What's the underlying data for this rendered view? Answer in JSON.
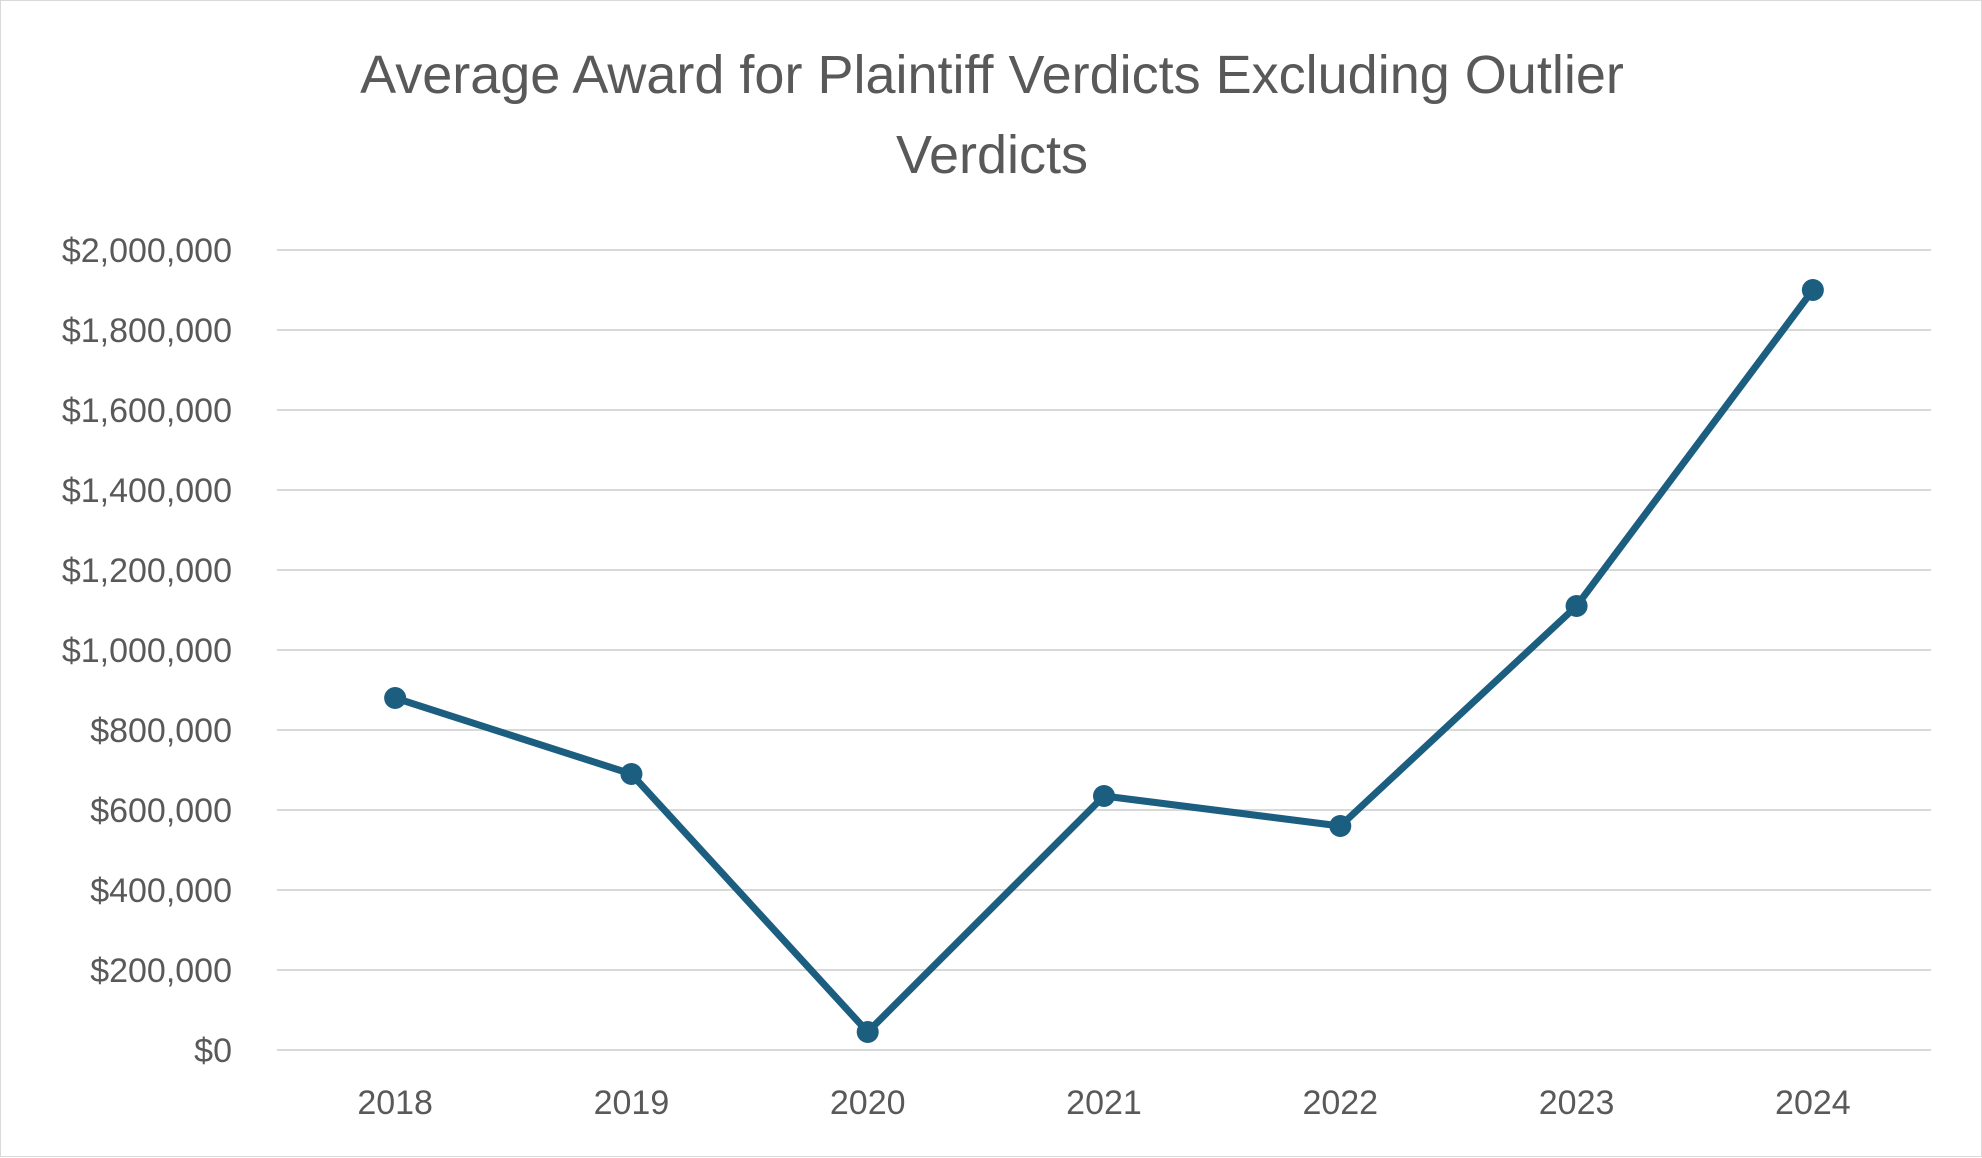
{
  "chart_data": {
    "type": "line",
    "title_lines": [
      "Average Award for Plaintiff Verdicts Excluding Outlier",
      "Verdicts"
    ],
    "xlabel": "",
    "ylabel": "",
    "categories": [
      "2018",
      "2019",
      "2020",
      "2021",
      "2022",
      "2023",
      "2024"
    ],
    "series": [
      {
        "values": [
          880000,
          690000,
          45000,
          635000,
          560000,
          1110000,
          1900000
        ],
        "color": "#1b5e80"
      }
    ],
    "ylim": [
      0,
      2000000
    ],
    "y_ticks": [
      0,
      200000,
      400000,
      600000,
      800000,
      1000000,
      1200000,
      1400000,
      1600000,
      1800000,
      2000000
    ],
    "y_tick_labels": [
      "$0",
      "$200,000",
      "$400,000",
      "$600,000",
      "$800,000",
      "$1,000,000",
      "$1,200,000",
      "$1,400,000",
      "$1,600,000",
      "$1,800,000",
      "$2,000,000"
    ],
    "grid": true,
    "legend": "none",
    "gridline_color": "#d9d9d9"
  }
}
